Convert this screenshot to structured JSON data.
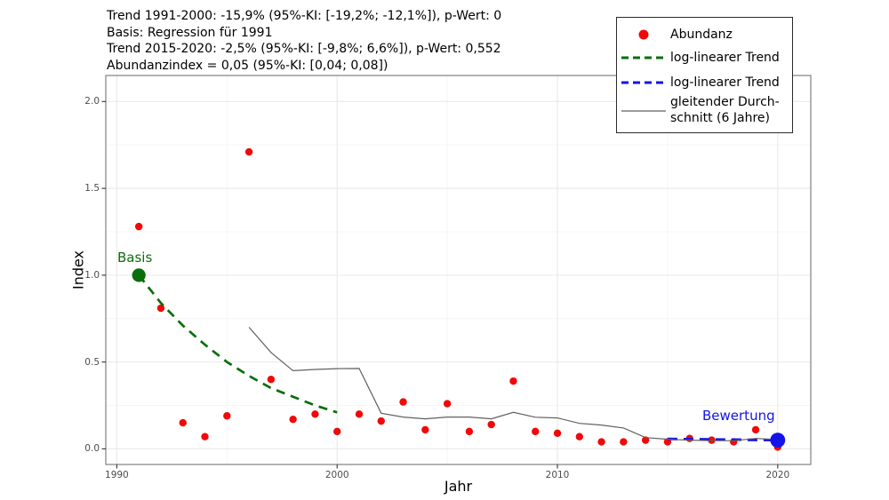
{
  "chart_data": {
    "type": "scatter",
    "title_lines": [
      "Trend 1991-2000: -15,9% (95%-KI: [-19,2%; -12,1%]), p-Wert: 0",
      "Basis: Regression für 1991",
      "Trend 2015-2020: -2,5% (95%-KI: [-9,8%; 6,6%]), p-Wert: 0,552",
      "Abundanzindex = 0,05 (95%-KI: [0,04; 0,08])"
    ],
    "xlabel": "Jahr",
    "ylabel": "Index",
    "xticks": [
      1990,
      2000,
      2010,
      2020
    ],
    "x_minor_ticks": [
      1995,
      2005,
      2015
    ],
    "yticks": [
      0.0,
      0.5,
      1.0,
      1.5,
      2.0
    ],
    "y_minor_ticks": [
      0.25,
      0.75,
      1.25,
      1.75
    ],
    "xlim": [
      1989.5,
      2021.5
    ],
    "ylim": [
      -0.09,
      2.15
    ],
    "grid": true,
    "legend_position": "top-right",
    "legend_entries": [
      {
        "label": "Abundanz",
        "style": "point",
        "color": "#f20808"
      },
      {
        "label": "log-linearer Trend",
        "style": "dashed",
        "color": "#0a6e0a"
      },
      {
        "label": "log-linearer Trend",
        "style": "dashed",
        "color": "#1414e6"
      },
      {
        "label_line1": "gleitender Durch-",
        "label_line2": "schnitt (6 Jahre)",
        "style": "solid",
        "color": "#606060"
      }
    ],
    "series": [
      {
        "name": "Abundanz",
        "kind": "points",
        "color": "#f20808",
        "marker_radius": 4.2,
        "x": [
          1991,
          1992,
          1993,
          1994,
          1995,
          1996,
          1997,
          1998,
          1999,
          2000,
          2001,
          2002,
          2003,
          2004,
          2005,
          2006,
          2007,
          2008,
          2009,
          2010,
          2011,
          2012,
          2013,
          2014,
          2015,
          2016,
          2017,
          2018,
          2019,
          2020
        ],
        "y": [
          1.28,
          0.81,
          0.15,
          0.07,
          0.19,
          1.71,
          0.4,
          0.17,
          0.2,
          0.1,
          0.2,
          0.16,
          0.27,
          0.11,
          0.26,
          0.1,
          0.14,
          0.39,
          0.1,
          0.09,
          0.07,
          0.04,
          0.04,
          0.05,
          0.04,
          0.06,
          0.05,
          0.04,
          0.11,
          0.01
        ]
      },
      {
        "name": "log-linearer Trend (1991-2000)",
        "kind": "dashed",
        "color": "#0a6e0a",
        "width": 2.7,
        "dash": "10,7",
        "x": [
          1991,
          1992,
          1993,
          1994,
          1995,
          1996,
          1997,
          1998,
          1999,
          2000
        ],
        "y": [
          1.0,
          0.84,
          0.71,
          0.6,
          0.5,
          0.42,
          0.35,
          0.3,
          0.25,
          0.21
        ]
      },
      {
        "name": "log-linearer Trend (2015-2020)",
        "kind": "dashed",
        "color": "#1414e6",
        "width": 3,
        "dash": "11,7",
        "x": [
          2015,
          2020
        ],
        "y": [
          0.057,
          0.05
        ]
      },
      {
        "name": "gleitender Durchschnitt (6 Jahre)",
        "kind": "line",
        "color": "#606060",
        "width": 1.2,
        "x": [
          1996,
          1997,
          1998,
          1999,
          2000,
          2001,
          2002,
          2003,
          2004,
          2005,
          2006,
          2007,
          2008,
          2009,
          2010,
          2011,
          2012,
          2013,
          2014,
          2015,
          2016,
          2017,
          2018,
          2019,
          2020
        ],
        "y": [
          0.7,
          0.555,
          0.45,
          0.457,
          0.462,
          0.463,
          0.205,
          0.183,
          0.173,
          0.183,
          0.183,
          0.173,
          0.21,
          0.182,
          0.178,
          0.147,
          0.137,
          0.12,
          0.065,
          0.055,
          0.05,
          0.047,
          0.047,
          0.06,
          0.053
        ]
      }
    ],
    "points_of_interest": [
      {
        "label": "Basis",
        "x": 1991,
        "y": 1.0,
        "color": "#0a6e0a",
        "radius": 7.6
      },
      {
        "label": "Bewertung",
        "x": 2020,
        "y": 0.05,
        "color": "#1414e6",
        "radius": 8.4
      }
    ],
    "colors": {
      "grid_major": "#e9e9e9",
      "grid_minor": "#f4f4f4",
      "panel_border": "#8a8a8a",
      "tick_mark": "#333333",
      "tick_label": "#4d4d4d"
    }
  }
}
